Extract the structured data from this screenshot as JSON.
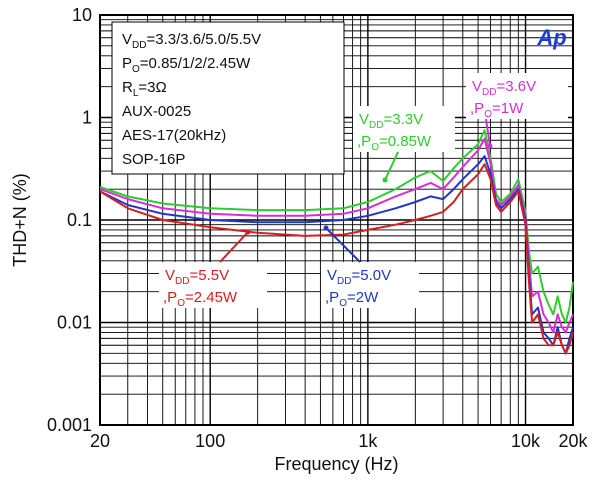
{
  "chart_data": {
    "type": "line",
    "xlabel": "Frequency (Hz)",
    "ylabel": "THD+N (%)",
    "xscale": "log",
    "yscale": "log",
    "xlim": [
      20,
      20000
    ],
    "ylim": [
      0.001,
      10
    ],
    "grid": true,
    "x_ticks": [
      {
        "value": 20,
        "label": "20"
      },
      {
        "value": 100,
        "label": "100"
      },
      {
        "value": 1000,
        "label": "1k"
      },
      {
        "value": 10000,
        "label": "10k"
      },
      {
        "value": 20000,
        "label": "20k"
      }
    ],
    "y_ticks": [
      {
        "value": 10,
        "label": "10"
      },
      {
        "value": 1,
        "label": "1"
      },
      {
        "value": 0.1,
        "label": "0.1"
      },
      {
        "value": 0.01,
        "label": "0.01"
      },
      {
        "value": 0.001,
        "label": "0.001"
      }
    ],
    "legend_box": {
      "placement": "top-left",
      "lines": [
        {
          "main": "V",
          "sub": "DD",
          "rest": "=3.3/3.6/5.0/5.5V"
        },
        {
          "main": "P",
          "sub": "O",
          "rest": "=0.85/1/2/2.45W"
        },
        {
          "main": "R",
          "sub": "L",
          "rest": "=3Ω"
        },
        {
          "main": "AUX-0025",
          "sub": "",
          "rest": ""
        },
        {
          "main": "AES-17(20kHz)",
          "sub": "",
          "rest": ""
        },
        {
          "main": "SOP-16P",
          "sub": "",
          "rest": ""
        }
      ]
    },
    "series": [
      {
        "color": "#2ecc2e",
        "x": [
          20,
          30,
          50,
          100,
          200,
          400,
          700,
          1000,
          1500,
          2000,
          2500,
          3000,
          3500,
          4000,
          5000,
          5500,
          6000,
          6500,
          7000,
          8000,
          9000,
          10000,
          10500,
          11000,
          12000,
          13000,
          14000,
          15000,
          16000,
          17000,
          18000,
          19000,
          20000
        ],
        "y": [
          0.21,
          0.17,
          0.145,
          0.13,
          0.125,
          0.125,
          0.13,
          0.15,
          0.2,
          0.26,
          0.3,
          0.24,
          0.32,
          0.4,
          0.55,
          0.75,
          0.4,
          0.18,
          0.15,
          0.18,
          0.25,
          0.12,
          0.05,
          0.03,
          0.035,
          0.02,
          0.015,
          0.012,
          0.018,
          0.012,
          0.01,
          0.014,
          0.025
        ]
      },
      {
        "color": "#d62fd6",
        "x": [
          20,
          30,
          50,
          100,
          200,
          400,
          700,
          1000,
          1500,
          2000,
          2500,
          3000,
          3500,
          4000,
          5000,
          5500,
          6000,
          6500,
          7000,
          8000,
          9000,
          10000,
          10500,
          11000,
          12000,
          13000,
          14000,
          15000,
          16000,
          17000,
          18000,
          19000,
          20000
        ],
        "y": [
          0.2,
          0.16,
          0.13,
          0.115,
          0.11,
          0.11,
          0.115,
          0.13,
          0.17,
          0.2,
          0.23,
          0.2,
          0.26,
          0.33,
          0.48,
          0.62,
          0.35,
          0.16,
          0.14,
          0.17,
          0.22,
          0.11,
          0.04,
          0.018,
          0.02,
          0.012,
          0.01,
          0.008,
          0.012,
          0.009,
          0.008,
          0.01,
          0.012
        ]
      },
      {
        "color": "#2236c8",
        "x": [
          20,
          30,
          50,
          100,
          200,
          400,
          700,
          1000,
          1500,
          2000,
          2500,
          3000,
          3500,
          4000,
          5000,
          5500,
          6000,
          6500,
          7000,
          8000,
          9000,
          10000,
          10500,
          11000,
          12000,
          13000,
          14000,
          15000,
          16000,
          17000,
          18000,
          19000,
          20000
        ],
        "y": [
          0.19,
          0.14,
          0.115,
          0.1,
          0.095,
          0.095,
          0.1,
          0.11,
          0.13,
          0.15,
          0.17,
          0.16,
          0.2,
          0.25,
          0.35,
          0.42,
          0.28,
          0.15,
          0.13,
          0.16,
          0.2,
          0.1,
          0.03,
          0.012,
          0.014,
          0.008,
          0.007,
          0.006,
          0.009,
          0.006,
          0.005,
          0.007,
          0.009
        ]
      },
      {
        "color": "#d42020",
        "x": [
          20,
          30,
          50,
          100,
          200,
          400,
          700,
          1000,
          1500,
          2000,
          2500,
          3000,
          3500,
          4000,
          5000,
          5500,
          6000,
          6500,
          7000,
          8000,
          9000,
          10000,
          10500,
          11000,
          12000,
          13000,
          14000,
          15000,
          16000,
          17000,
          18000,
          19000,
          20000
        ],
        "y": [
          0.19,
          0.13,
          0.1,
          0.085,
          0.075,
          0.07,
          0.072,
          0.08,
          0.09,
          0.1,
          0.11,
          0.12,
          0.15,
          0.2,
          0.28,
          0.35,
          0.25,
          0.14,
          0.12,
          0.15,
          0.19,
          0.09,
          0.025,
          0.01,
          0.012,
          0.007,
          0.006,
          0.006,
          0.008,
          0.006,
          0.005,
          0.006,
          0.008
        ]
      }
    ],
    "annotations": [
      {
        "color": "#2ecc2e",
        "line1": {
          "main": "V",
          "sub": "DD",
          "rest": "=3.3V"
        },
        "line2": {
          "main": ",P",
          "sub": "O",
          "rest": "=0.85W"
        }
      },
      {
        "color": "#d62fd6",
        "line1": {
          "main": "V",
          "sub": "DD",
          "rest": "=3.6V"
        },
        "line2": {
          "main": ",P",
          "sub": "O",
          "rest": "=1W"
        }
      },
      {
        "color": "#2236c8",
        "line1": {
          "main": "V",
          "sub": "DD",
          "rest": "=5.0V"
        },
        "line2": {
          "main": ",P",
          "sub": "O",
          "rest": "=2W"
        }
      },
      {
        "color": "#d42020",
        "line1": {
          "main": "V",
          "sub": "DD",
          "rest": "=5.5V"
        },
        "line2": {
          "main": ",P",
          "sub": "O",
          "rest": "=2.45W"
        }
      }
    ],
    "logo_text": "Ap"
  }
}
